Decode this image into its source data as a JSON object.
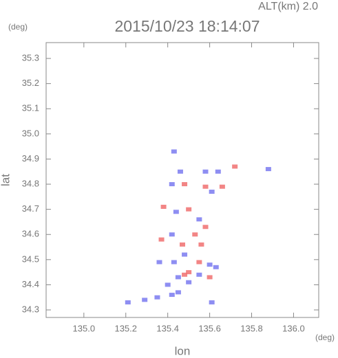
{
  "chart_data": {
    "type": "scatter",
    "title": "2015/10/23 18:14:07",
    "subtitle": "ALT(km) 2.0",
    "y_unit": "(deg)",
    "x_unit": "(deg)",
    "xlabel": "lon",
    "ylabel": "lat",
    "xlim": [
      134.82,
      136.12
    ],
    "ylim": [
      34.27,
      35.363
    ],
    "xticks": [
      {
        "value": 135,
        "label": "135.0"
      },
      135.2,
      135.4,
      135.6,
      135.8,
      {
        "value": 136,
        "label": "136.0"
      }
    ],
    "yticks": [
      34.3,
      34.4,
      34.5,
      34.6,
      34.7,
      34.8,
      34.9,
      {
        "value": 35,
        "label": "35.0"
      },
      35.1,
      35.2,
      35.3
    ],
    "x": [
      135.43,
      135.48,
      135.46,
      135.58,
      135.64,
      135.61,
      135.72,
      135.88,
      135.38,
      135.44,
      135.5,
      135.55,
      135.58,
      135.42,
      135.53,
      135.47,
      135.37,
      135.48,
      135.55,
      135.6,
      135.43,
      135.36,
      135.5,
      135.45,
      135.55,
      135.6,
      135.63,
      135.5,
      135.4,
      135.45,
      135.42,
      135.35,
      135.29,
      135.21,
      135.61,
      135.48,
      135.66,
      135.58,
      135.42,
      135.56
    ],
    "y": [
      34.93,
      34.8,
      34.85,
      34.79,
      34.85,
      34.77,
      34.87,
      34.86,
      34.71,
      34.69,
      34.7,
      34.66,
      34.63,
      34.6,
      34.6,
      34.56,
      34.58,
      34.52,
      34.49,
      34.48,
      34.49,
      34.49,
      34.45,
      34.43,
      34.44,
      34.43,
      34.47,
      34.41,
      34.4,
      34.37,
      34.36,
      34.35,
      34.34,
      34.33,
      34.33,
      34.44,
      34.79,
      34.85,
      34.8,
      34.56
    ],
    "colors": [
      "#7a7af0",
      "#f07070",
      "#7a7af0",
      "#f07070",
      "#7a7af0",
      "#7a7af0",
      "#f07070",
      "#7a7af0",
      "#f07070",
      "#7a7af0",
      "#f07070",
      "#7a7af0",
      "#f07070",
      "#7a7af0",
      "#f07070",
      "#f07070",
      "#f07070",
      "#7a7af0",
      "#f07070",
      "#7a7af0",
      "#7a7af0",
      "#7a7af0",
      "#f07070",
      "#7a7af0",
      "#7a7af0",
      "#f07070",
      "#7a7af0",
      "#7a7af0",
      "#7a7af0",
      "#7a7af0",
      "#7a7af0",
      "#7a7af0",
      "#7a7af0",
      "#7a7af0",
      "#7a7af0",
      "#f07070",
      "#f07070",
      "#7a7af0",
      "#7a7af0",
      "#f07070"
    ]
  }
}
